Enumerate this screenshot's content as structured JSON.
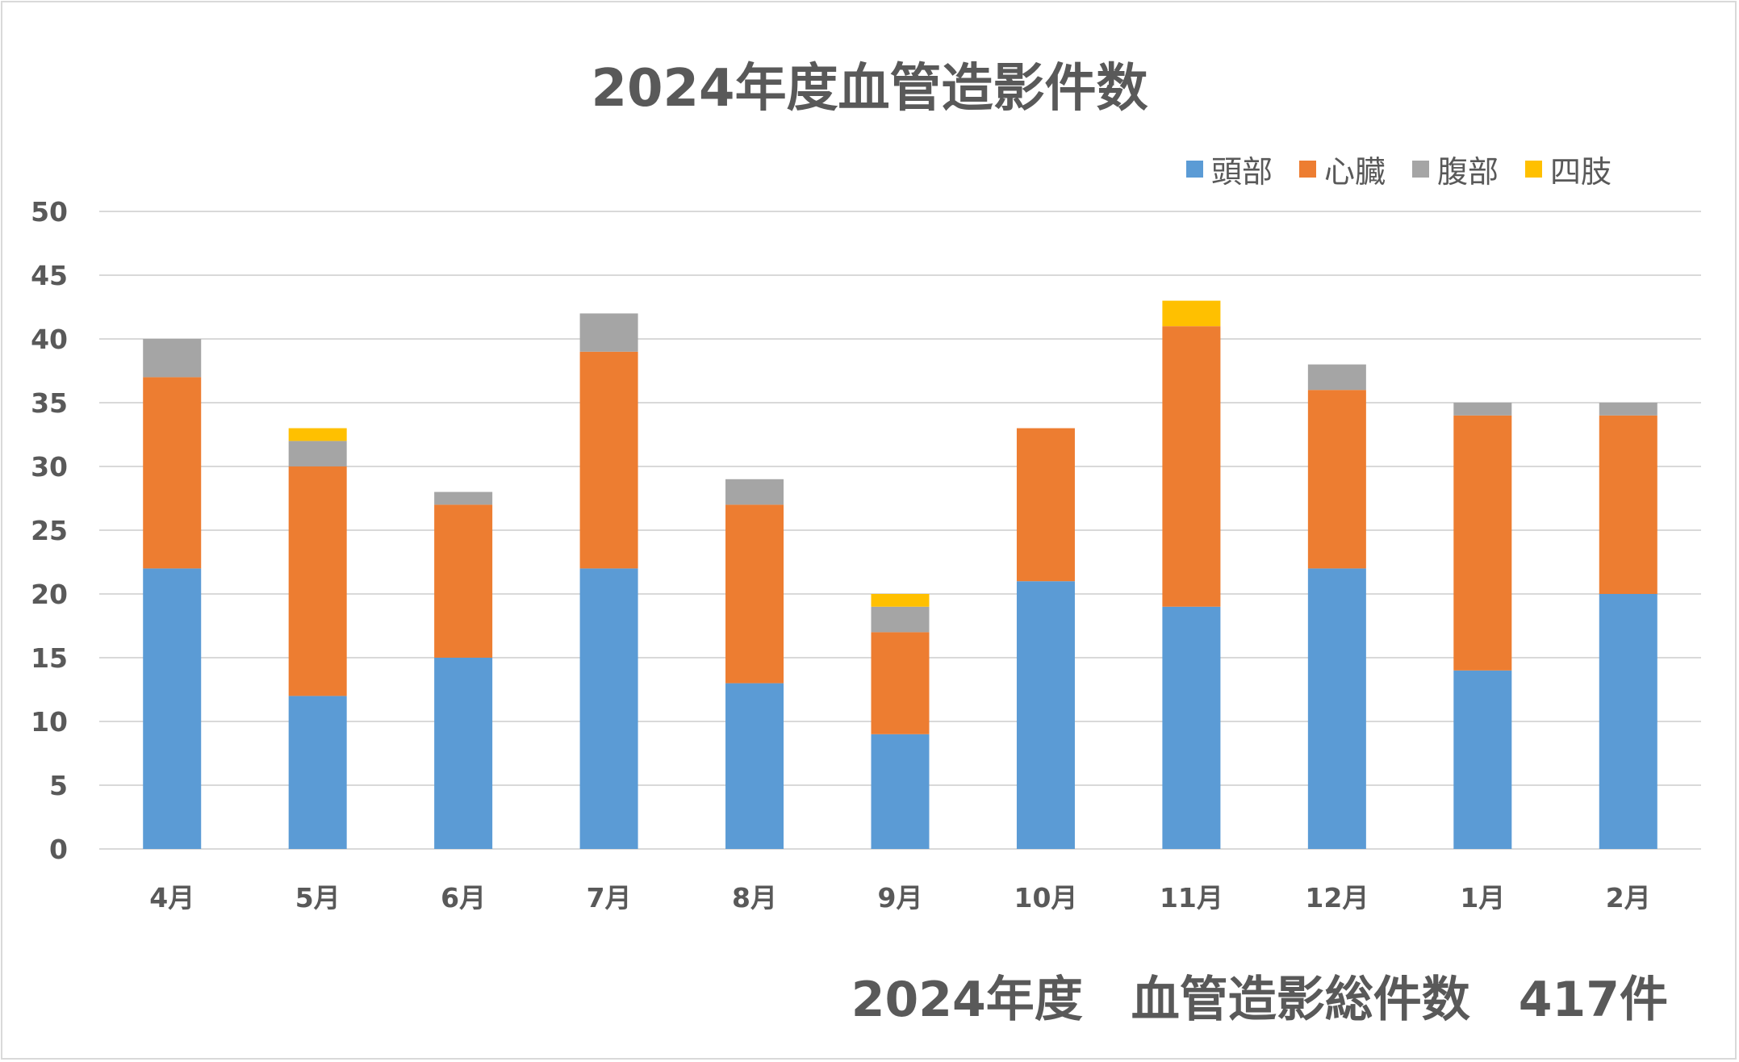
{
  "chart_data": {
    "type": "bar",
    "stacked": true,
    "title": "2024年度血管造影件数",
    "categories": [
      "4月",
      "5月",
      "6月",
      "7月",
      "8月",
      "9月",
      "10月",
      "11月",
      "12月",
      "1月",
      "2月"
    ],
    "series": [
      {
        "name": "頭部",
        "color": "#5b9bd5",
        "values": [
          22,
          12,
          15,
          22,
          13,
          9,
          21,
          19,
          22,
          14,
          20
        ]
      },
      {
        "name": "心臓",
        "color": "#ed7d31",
        "values": [
          15,
          18,
          12,
          17,
          14,
          8,
          12,
          22,
          14,
          20,
          14
        ]
      },
      {
        "name": "腹部",
        "color": "#a5a5a5",
        "values": [
          3,
          2,
          1,
          3,
          2,
          2,
          0,
          0,
          2,
          1,
          1
        ]
      },
      {
        "name": "四肢",
        "color": "#ffc000",
        "values": [
          0,
          1,
          0,
          0,
          0,
          1,
          0,
          2,
          0,
          0,
          0
        ]
      }
    ],
    "ylim": [
      0,
      50
    ],
    "yticks": [
      0,
      5,
      10,
      15,
      20,
      25,
      30,
      35,
      40,
      45,
      50
    ],
    "grid": true,
    "legend_position": "top-right",
    "annotation": "2024年度　血管造影総件数　417件"
  }
}
